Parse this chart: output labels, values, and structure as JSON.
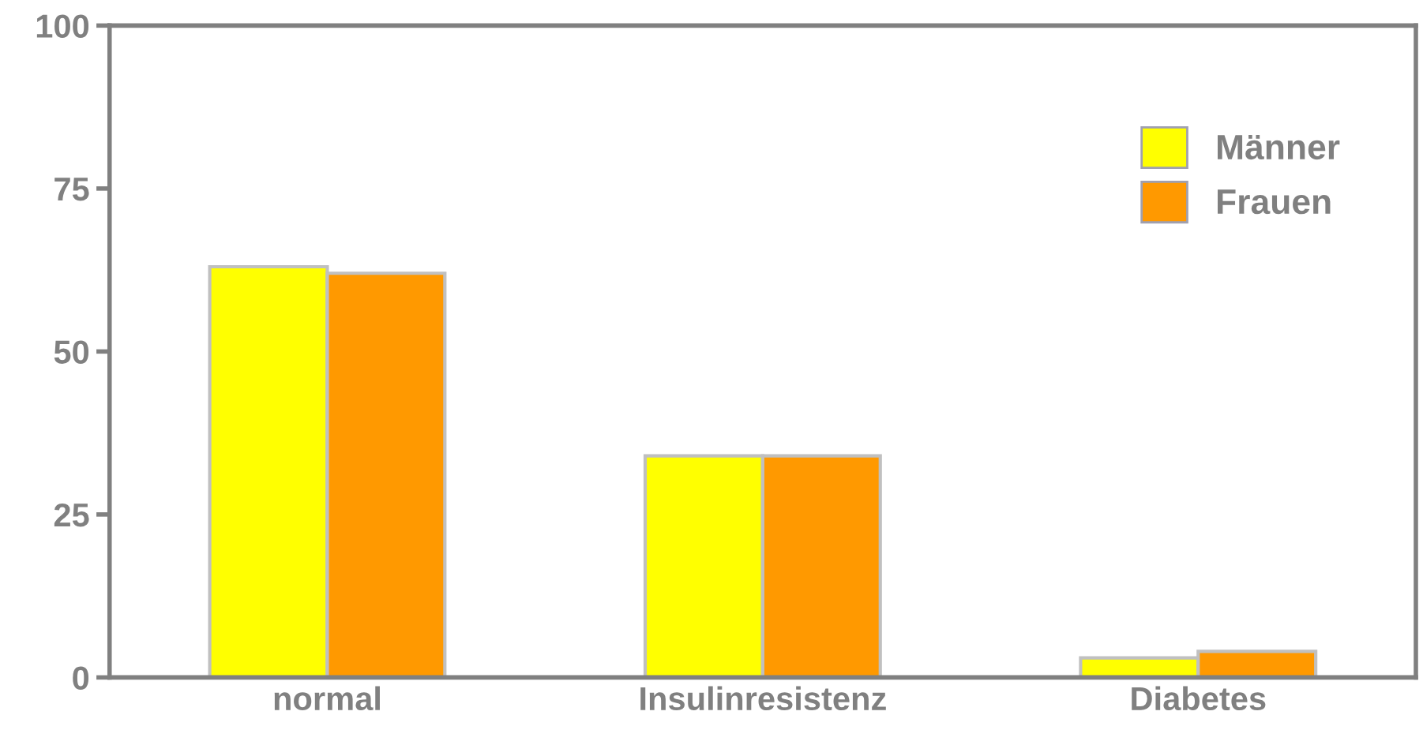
{
  "chart_data": {
    "type": "bar",
    "categories": [
      "normal",
      "Insulinresistenz",
      "Diabetes"
    ],
    "series": [
      {
        "name": "Männer",
        "color": "#ffff00",
        "values": [
          63,
          34,
          3
        ]
      },
      {
        "name": "Frauen",
        "color": "#ff9900",
        "values": [
          62,
          34,
          4
        ]
      }
    ],
    "ylim": [
      0,
      100
    ],
    "yticks": [
      0,
      25,
      50,
      75,
      100
    ],
    "grid": false,
    "legend": "top right"
  }
}
